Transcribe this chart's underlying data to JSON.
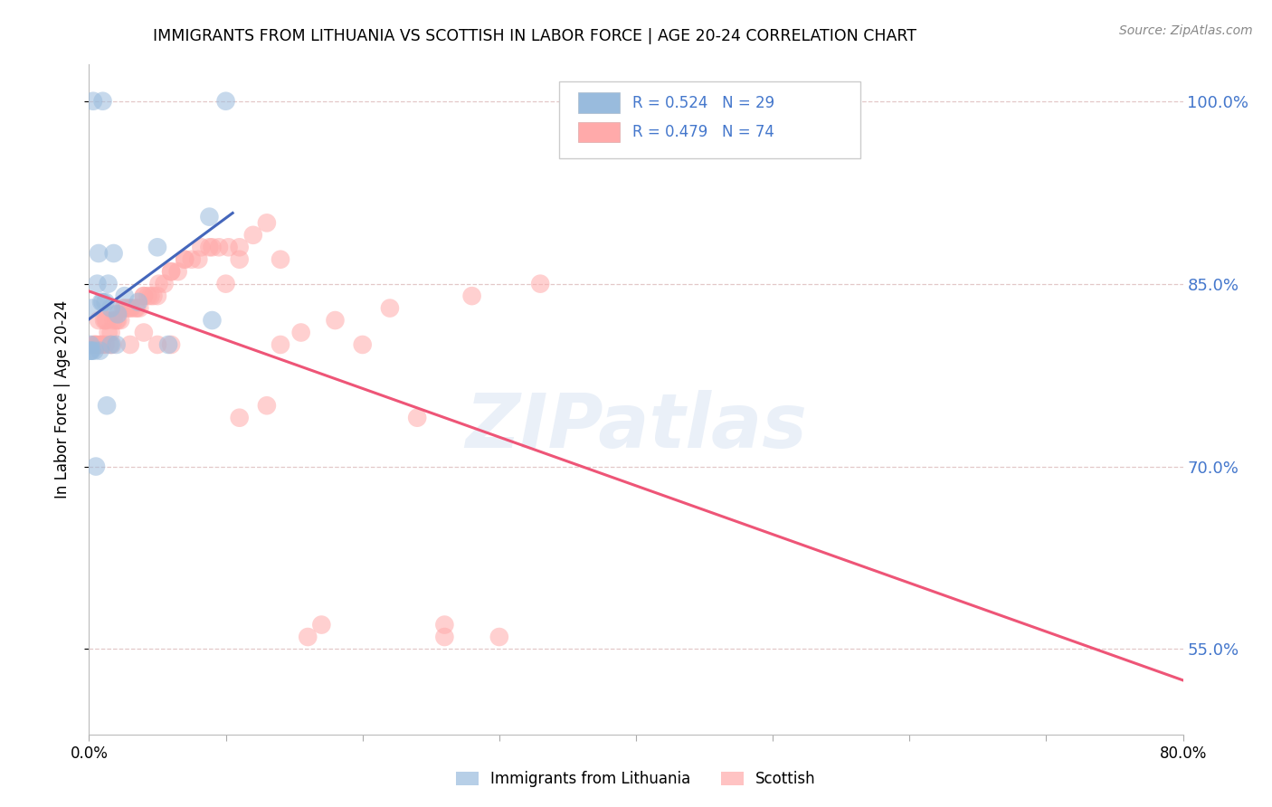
{
  "title": "IMMIGRANTS FROM LITHUANIA VS SCOTTISH IN LABOR FORCE | AGE 20-24 CORRELATION CHART",
  "source": "Source: ZipAtlas.com",
  "ylabel": "In Labor Force | Age 20-24",
  "xlim": [
    0.0,
    0.8
  ],
  "ylim": [
    0.48,
    1.03
  ],
  "yticks": [
    0.55,
    0.7,
    0.85,
    1.0
  ],
  "ytick_labels": [
    "55.0%",
    "70.0%",
    "85.0%",
    "100.0%"
  ],
  "xticks": [
    0.0,
    0.1,
    0.2,
    0.3,
    0.4,
    0.5,
    0.6,
    0.7,
    0.8
  ],
  "r1": 0.524,
  "n1": 29,
  "r2": 0.479,
  "n2": 74,
  "blue_color": "#99BBDD",
  "pink_color": "#FFAAAA",
  "line_blue": "#4466BB",
  "line_pink": "#EE5577",
  "axis_color": "#4477CC",
  "legend_label1": "Immigrants from Lithuania",
  "legend_label2": "Scottish",
  "lith_x": [
    0.003,
    0.01,
    0.001,
    0.002,
    0.006,
    0.01,
    0.009,
    0.012,
    0.014,
    0.007,
    0.018,
    0.02,
    0.026,
    0.016,
    0.021,
    0.036,
    0.05,
    0.088,
    0.1,
    0.016,
    0.008,
    0.001,
    0.001,
    0.002,
    0.004,
    0.005,
    0.013,
    0.058,
    0.09
  ],
  "lith_y": [
    1.0,
    1.0,
    0.8,
    0.83,
    0.85,
    0.835,
    0.835,
    0.835,
    0.85,
    0.875,
    0.875,
    0.8,
    0.84,
    0.83,
    0.825,
    0.835,
    0.88,
    0.905,
    1.0,
    0.8,
    0.795,
    0.795,
    0.795,
    0.795,
    0.795,
    0.7,
    0.75,
    0.8,
    0.82
  ],
  "scot_x": [
    0.003,
    0.004,
    0.005,
    0.006,
    0.007,
    0.008,
    0.009,
    0.01,
    0.011,
    0.012,
    0.013,
    0.015,
    0.017,
    0.019,
    0.021,
    0.023,
    0.026,
    0.028,
    0.031,
    0.034,
    0.037,
    0.04,
    0.043,
    0.047,
    0.051,
    0.055,
    0.06,
    0.065,
    0.07,
    0.075,
    0.082,
    0.088,
    0.095,
    0.102,
    0.11,
    0.12,
    0.13,
    0.14,
    0.012,
    0.014,
    0.016,
    0.018,
    0.02,
    0.025,
    0.03,
    0.035,
    0.04,
    0.045,
    0.05,
    0.06,
    0.07,
    0.08,
    0.09,
    0.1,
    0.11,
    0.03,
    0.04,
    0.05,
    0.06,
    0.11,
    0.13,
    0.24,
    0.26,
    0.26,
    0.3,
    0.18,
    0.2,
    0.22,
    0.16,
    0.17,
    0.28,
    0.33,
    0.14,
    0.155
  ],
  "scot_y": [
    0.8,
    0.8,
    0.8,
    0.8,
    0.82,
    0.8,
    0.8,
    0.8,
    0.82,
    0.82,
    0.82,
    0.8,
    0.8,
    0.825,
    0.82,
    0.82,
    0.83,
    0.83,
    0.83,
    0.83,
    0.83,
    0.84,
    0.84,
    0.84,
    0.85,
    0.85,
    0.86,
    0.86,
    0.87,
    0.87,
    0.88,
    0.88,
    0.88,
    0.88,
    0.88,
    0.89,
    0.9,
    0.87,
    0.8,
    0.81,
    0.81,
    0.82,
    0.82,
    0.83,
    0.83,
    0.83,
    0.84,
    0.84,
    0.84,
    0.86,
    0.87,
    0.87,
    0.88,
    0.85,
    0.87,
    0.8,
    0.81,
    0.8,
    0.8,
    0.74,
    0.75,
    0.74,
    0.56,
    0.57,
    0.56,
    0.82,
    0.8,
    0.83,
    0.56,
    0.57,
    0.84,
    0.85,
    0.8,
    0.81
  ]
}
